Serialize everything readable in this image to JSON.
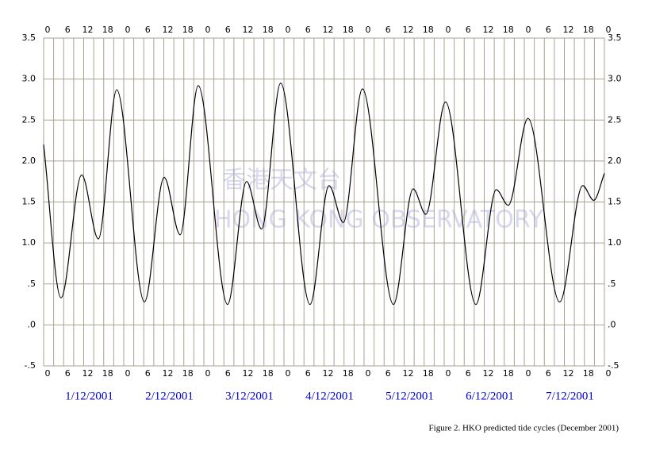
{
  "chart_data": {
    "type": "line",
    "caption": "Figure 2. HKO predicted tide cycles (December 2001)",
    "watermark": [
      "香港天文台",
      "HONG KONG OBSERVATORY"
    ],
    "day_labels": [
      "1/12/2001",
      "2/12/2001",
      "3/12/2001",
      "4/12/2001",
      "5/12/2001",
      "6/12/2001",
      "7/12/2001"
    ],
    "x": [
      0,
      5.2,
      11.4,
      16.4,
      21.9,
      30.2,
      36.1,
      40.9,
      46.3,
      55.1,
      60.8,
      65.3,
      71.0,
      79.8,
      85.5,
      89.8,
      95.5,
      104.8,
      110.7,
      114.5,
      120.4,
      129.5,
      135.6,
      139.2,
      145.1,
      154.6,
      161.5,
      164.8,
      168
    ],
    "values": [
      2.2,
      0.33,
      1.83,
      1.05,
      2.87,
      0.28,
      1.8,
      1.1,
      2.92,
      0.25,
      1.75,
      1.17,
      2.95,
      0.25,
      1.7,
      1.25,
      2.88,
      0.25,
      1.66,
      1.35,
      2.72,
      0.25,
      1.65,
      1.46,
      2.52,
      0.28,
      1.7,
      1.52,
      1.85
    ],
    "color": "#000000",
    "xlim": [
      0,
      168
    ],
    "xticks": [
      0,
      6,
      12,
      18,
      {
        "value": 24,
        "label": "0"
      },
      {
        "value": 30,
        "label": "6"
      },
      {
        "value": 36,
        "label": "12"
      },
      {
        "value": 42,
        "label": "18"
      },
      {
        "value": 48,
        "label": "0"
      },
      {
        "value": 54,
        "label": "6"
      },
      {
        "value": 60,
        "label": "12"
      },
      {
        "value": 66,
        "label": "18"
      },
      {
        "value": 72,
        "label": "0"
      },
      {
        "value": 78,
        "label": "6"
      },
      {
        "value": 84,
        "label": "12"
      },
      {
        "value": 90,
        "label": "18"
      },
      {
        "value": 96,
        "label": "0"
      },
      {
        "value": 102,
        "label": "6"
      },
      {
        "value": 108,
        "label": "12"
      },
      {
        "value": 114,
        "label": "18"
      },
      {
        "value": 120,
        "label": "0"
      },
      {
        "value": 126,
        "label": "6"
      },
      {
        "value": 132,
        "label": "12"
      },
      {
        "value": 138,
        "label": "18"
      },
      {
        "value": 144,
        "label": "0"
      },
      {
        "value": 150,
        "label": "6"
      },
      {
        "value": 156,
        "label": "12"
      },
      {
        "value": 162,
        "label": "18"
      },
      {
        "value": 168,
        "label": "0"
      }
    ],
    "ylim": [
      -0.5,
      3.5
    ],
    "yticks": [
      {
        "value": -0.5,
        "label": "-.5"
      },
      {
        "value": 0,
        "label": ".0"
      },
      {
        "value": 0.5,
        "label": ".5"
      },
      {
        "value": 1,
        "label": "1.0"
      },
      1.5,
      {
        "value": 2,
        "label": "2.0"
      },
      2.5,
      {
        "value": 3,
        "label": "3.0"
      },
      3.5
    ],
    "grid": true
  }
}
